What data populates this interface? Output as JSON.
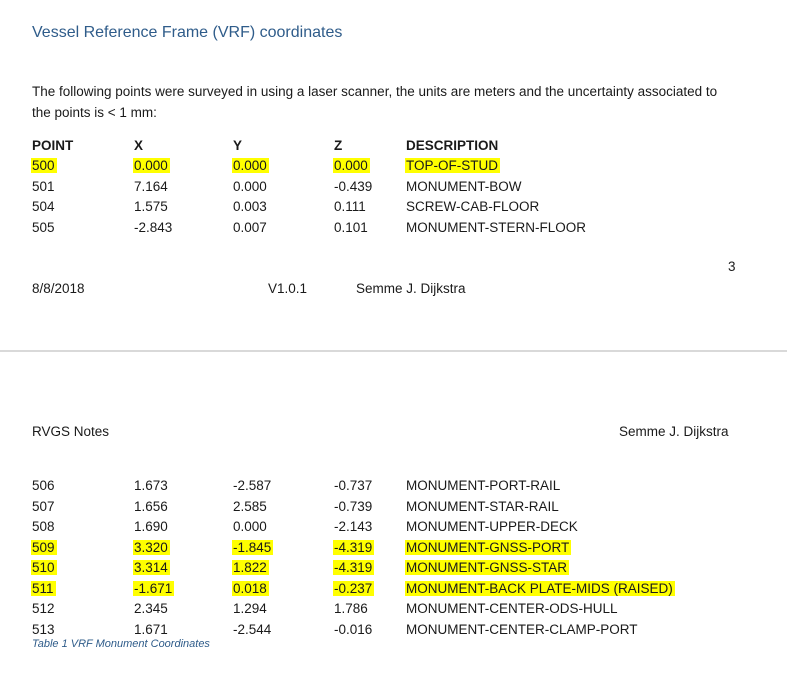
{
  "page1": {
    "heading": "Vessel Reference Frame (VRF) coordinates",
    "intro": "The following points were surveyed in using a laser scanner, the units are meters and the uncertainty associated to the points is < 1 mm:",
    "table_header": {
      "point": "POINT",
      "x": "X",
      "y": "Y",
      "z": "Z",
      "description": "DESCRIPTION"
    },
    "rows": [
      {
        "point": "500",
        "x": "0.000",
        "y": "0.000",
        "z": "0.000",
        "description": "TOP-OF-STUD",
        "highlighted": true
      },
      {
        "point": "501",
        "x": "7.164",
        "y": "0.000",
        "z": "-0.439",
        "description": "MONUMENT-BOW",
        "highlighted": false
      },
      {
        "point": "504",
        "x": "1.575",
        "y": "0.003",
        "z": "0.111",
        "description": "SCREW-CAB-FLOOR",
        "highlighted": false
      },
      {
        "point": "505",
        "x": "-2.843",
        "y": "0.007",
        "z": "0.101",
        "description": "MONUMENT-STERN-FLOOR",
        "highlighted": false
      }
    ],
    "page_number": "3",
    "footer": {
      "date": "8/8/2018",
      "version": "V1.0.1",
      "author": "Semme J. Dijkstra"
    }
  },
  "page2": {
    "header_left": "RVGS Notes",
    "header_right": "Semme J. Dijkstra",
    "rows": [
      {
        "point": "506",
        "x": "1.673",
        "y": "-2.587",
        "z": "-0.737",
        "description": "MONUMENT-PORT-RAIL",
        "highlighted": false
      },
      {
        "point": "507",
        "x": "1.656",
        "y": "2.585",
        "z": "-0.739",
        "description": "MONUMENT-STAR-RAIL",
        "highlighted": false
      },
      {
        "point": "508",
        "x": "1.690",
        "y": "0.000",
        "z": "-2.143",
        "description": "MONUMENT-UPPER-DECK",
        "highlighted": false
      },
      {
        "point": "509",
        "x": "3.320",
        "y": "-1.845",
        "z": "-4.319",
        "description": "MONUMENT-GNSS-PORT",
        "highlighted": true
      },
      {
        "point": "510",
        "x": "3.314",
        "y": "1.822",
        "z": "-4.319",
        "description": "MONUMENT-GNSS-STAR",
        "highlighted": true
      },
      {
        "point": "511",
        "x": "-1.671",
        "y": "0.018",
        "z": "-0.237",
        "description": "MONUMENT-BACK PLATE-MIDS (RAISED)",
        "highlighted": true
      },
      {
        "point": "512",
        "x": "2.345",
        "y": "1.294",
        "z": "1.786",
        "description": "MONUMENT-CENTER-ODS-HULL",
        "highlighted": false
      },
      {
        "point": "513",
        "x": "1.671",
        "y": "-2.544",
        "z": "-0.016",
        "description": "MONUMENT-CENTER-CLAMP-PORT",
        "highlighted": false
      }
    ],
    "caption": "Table 1 VRF Monument Coordinates"
  },
  "colors": {
    "heading": "#2f5c8a",
    "highlight": "#ffff00",
    "page_gap": "#d9d9d9"
  }
}
